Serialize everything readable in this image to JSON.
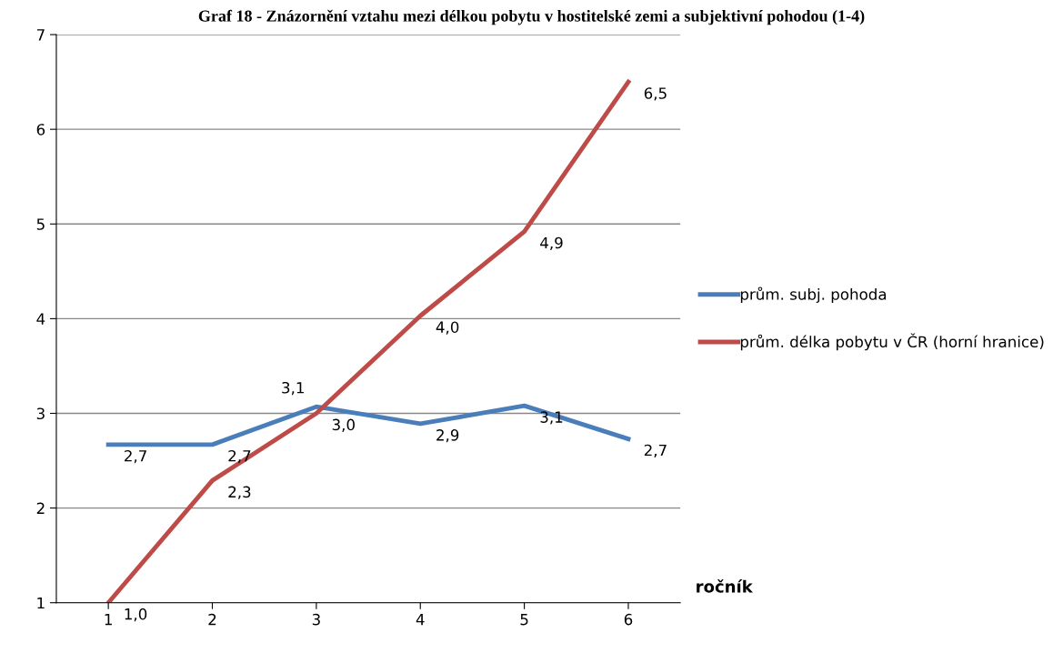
{
  "chart_data": {
    "type": "line",
    "title": "Graf 18 - Znázornění vztahu mezi délkou pobytu v hostitelské zemi a subjektivní pohodou (1-4)",
    "xlabel": "ročník",
    "categories": [
      "1",
      "2",
      "3",
      "4",
      "5",
      "6"
    ],
    "series": [
      {
        "name": "prům. subj. pohoda",
        "color": "#4a7ebb",
        "values": [
          2.67,
          2.67,
          3.07,
          2.89,
          3.08,
          2.73
        ],
        "value_labels": [
          "2,7",
          "2,7",
          "3,1",
          "2,9",
          "3,1",
          "2,7"
        ]
      },
      {
        "name": "prům. délka pobytu v ČR (horní hranice)",
        "color": "#be4b48",
        "values": [
          1.0,
          2.29,
          3.0,
          4.03,
          4.92,
          6.5
        ],
        "value_labels": [
          "1,0",
          "2,3",
          "3,0",
          "4,0",
          "4,9",
          "6,5"
        ]
      }
    ],
    "ylim": [
      1,
      7
    ],
    "yticks": [
      1,
      2,
      3,
      4,
      5,
      6,
      7
    ],
    "grid": "y",
    "legend": "right",
    "marker": "none",
    "line_style": "solid"
  }
}
